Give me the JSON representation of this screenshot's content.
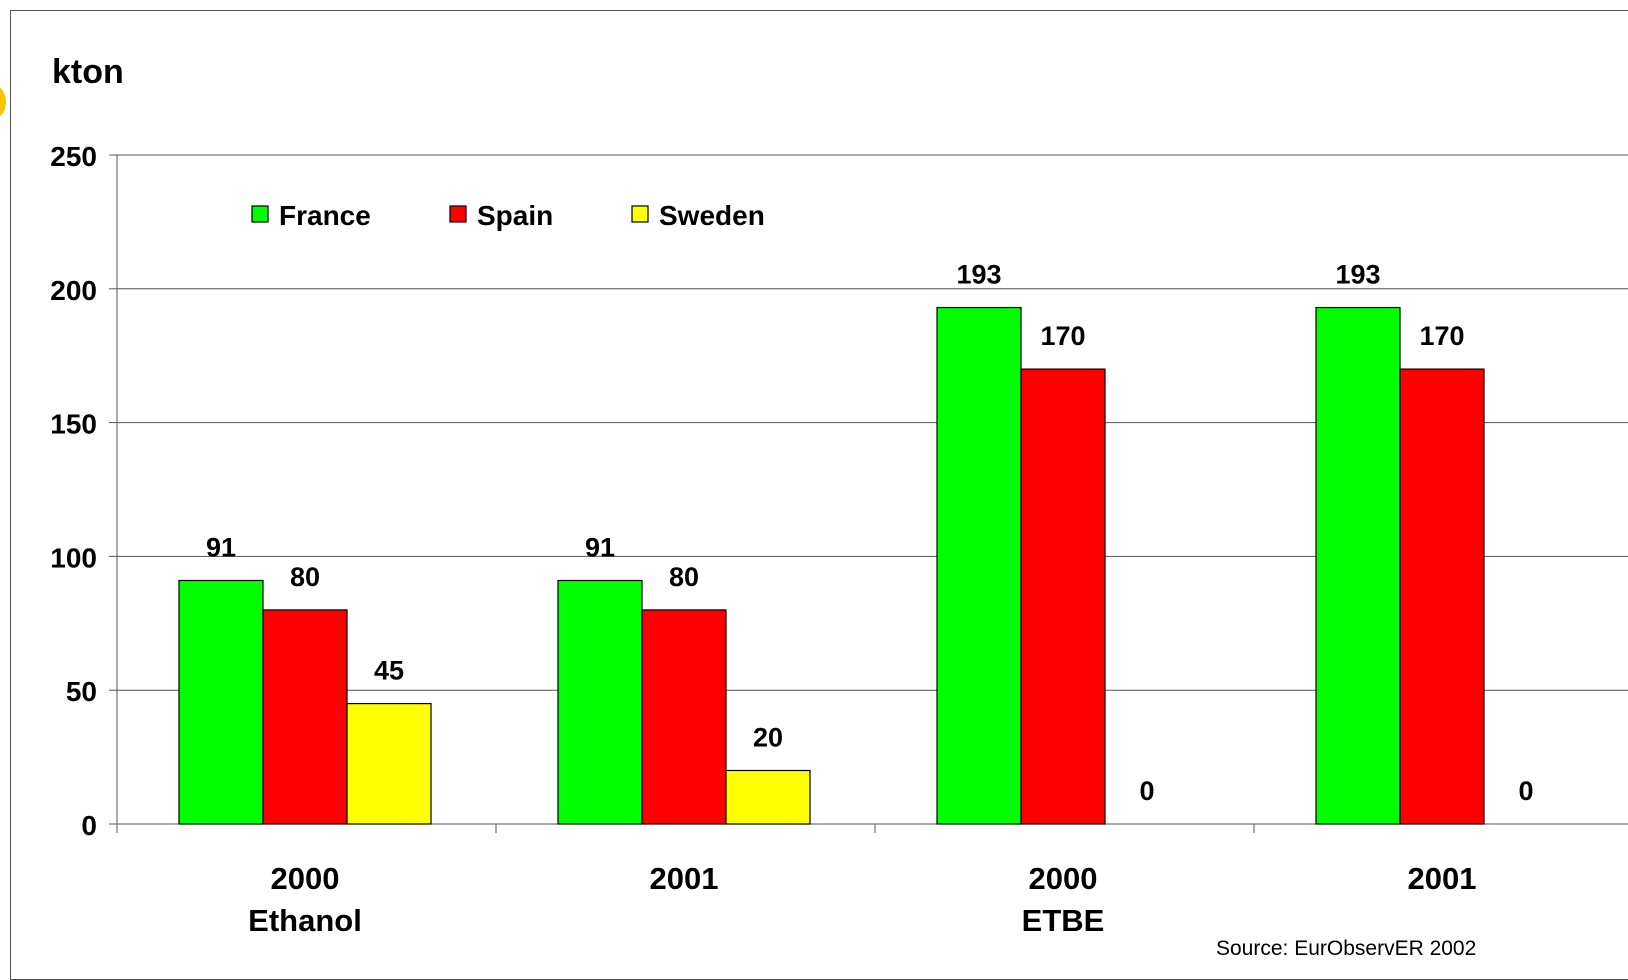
{
  "colors": {
    "France": "#00ff00",
    "Spain": "#ff0000",
    "Sweden": "#ffff00",
    "accent": "#f7c600"
  },
  "source_note": "Source: EurObservER 2002",
  "chart_data": {
    "type": "bar",
    "title": "",
    "ylabel": "kton",
    "xlabel": "",
    "ylim": [
      0,
      250
    ],
    "yticks": [
      0,
      50,
      100,
      150,
      200,
      250
    ],
    "grid": true,
    "legend": "top-left",
    "categories": [
      {
        "year": "2000",
        "product": "Ethanol"
      },
      {
        "year": "2001",
        "product": ""
      },
      {
        "year": "2000",
        "product": "ETBE"
      },
      {
        "year": "2001",
        "product": ""
      }
    ],
    "series": [
      {
        "name": "France",
        "values": [
          91,
          91,
          193,
          193
        ]
      },
      {
        "name": "Spain",
        "values": [
          80,
          80,
          170,
          170
        ]
      },
      {
        "name": "Sweden",
        "values": [
          45,
          20,
          0,
          0
        ]
      }
    ]
  }
}
